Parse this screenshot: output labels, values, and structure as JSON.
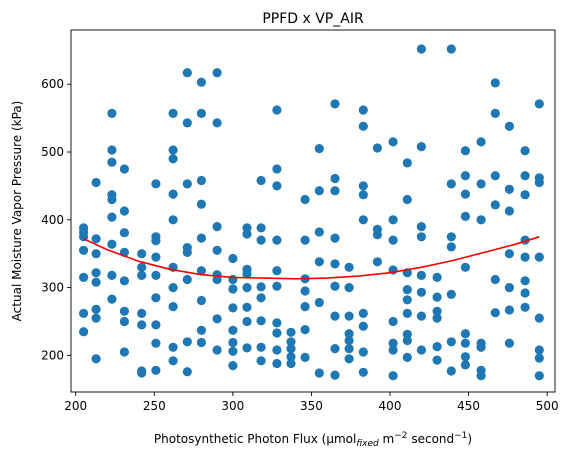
{
  "chart_data": {
    "type": "scatter",
    "title": "PPFD x VP_AIR",
    "xlabel_parts": {
      "main": "Photosynthetic Photon Flux (μmol",
      "sub": "fixed",
      "mid": " m",
      "sup1": "−2",
      "mid2": " second",
      "sup2": "−1",
      "end": ")"
    },
    "ylabel": "Actual Moisture Vapor Pressure (kPa)",
    "xlim": [
      197,
      505
    ],
    "ylim": [
      146,
      680
    ],
    "xticks": [
      200,
      250,
      300,
      350,
      400,
      450,
      500
    ],
    "yticks": [
      200,
      300,
      400,
      500,
      600
    ],
    "grid": false,
    "point_color": "#1f77b4",
    "fit_color": "#ff0000",
    "points": [
      [
        205,
        382
      ],
      [
        205,
        375
      ],
      [
        205,
        355
      ],
      [
        205,
        315
      ],
      [
        205,
        262
      ],
      [
        205,
        235
      ],
      [
        205,
        388
      ],
      [
        213,
        455
      ],
      [
        213,
        372
      ],
      [
        213,
        350
      ],
      [
        213,
        322
      ],
      [
        213,
        308
      ],
      [
        213,
        268
      ],
      [
        213,
        255
      ],
      [
        213,
        195
      ],
      [
        223,
        557
      ],
      [
        223,
        503
      ],
      [
        223,
        485
      ],
      [
        223,
        437
      ],
      [
        223,
        430
      ],
      [
        223,
        404
      ],
      [
        223,
        364
      ],
      [
        223,
        318
      ],
      [
        223,
        283
      ],
      [
        231,
        475
      ],
      [
        231,
        413
      ],
      [
        231,
        381
      ],
      [
        231,
        352
      ],
      [
        231,
        310
      ],
      [
        231,
        265
      ],
      [
        231,
        250
      ],
      [
        231,
        205
      ],
      [
        242,
        350
      ],
      [
        242,
        330
      ],
      [
        242,
        318
      ],
      [
        242,
        262
      ],
      [
        242,
        245
      ],
      [
        242,
        177
      ],
      [
        242,
        174
      ],
      [
        251,
        453
      ],
      [
        251,
        375
      ],
      [
        251,
        369
      ],
      [
        251,
        345
      ],
      [
        251,
        318
      ],
      [
        251,
        285
      ],
      [
        251,
        245
      ],
      [
        251,
        218
      ],
      [
        251,
        178
      ],
      [
        262,
        557
      ],
      [
        262,
        503
      ],
      [
        262,
        490
      ],
      [
        262,
        438
      ],
      [
        262,
        400
      ],
      [
        262,
        330
      ],
      [
        262,
        300
      ],
      [
        262,
        272
      ],
      [
        262,
        212
      ],
      [
        262,
        192
      ],
      [
        271,
        617
      ],
      [
        271,
        543
      ],
      [
        271,
        453
      ],
      [
        271,
        359
      ],
      [
        271,
        352
      ],
      [
        271,
        312
      ],
      [
        271,
        220
      ],
      [
        271,
        176
      ],
      [
        280,
        603
      ],
      [
        280,
        557
      ],
      [
        280,
        458
      ],
      [
        280,
        423
      ],
      [
        280,
        373
      ],
      [
        280,
        325
      ],
      [
        280,
        281
      ],
      [
        280,
        237
      ],
      [
        280,
        219
      ],
      [
        290,
        617
      ],
      [
        290,
        543
      ],
      [
        290,
        390
      ],
      [
        290,
        355
      ],
      [
        290,
        319
      ],
      [
        290,
        312
      ],
      [
        290,
        254
      ],
      [
        290,
        208
      ],
      [
        300,
        343
      ],
      [
        300,
        312
      ],
      [
        300,
        298
      ],
      [
        300,
        270
      ],
      [
        300,
        237
      ],
      [
        300,
        219
      ],
      [
        300,
        206
      ],
      [
        300,
        185
      ],
      [
        309,
        388
      ],
      [
        309,
        379
      ],
      [
        309,
        327
      ],
      [
        309,
        320
      ],
      [
        309,
        300
      ],
      [
        309,
        271
      ],
      [
        309,
        250
      ],
      [
        309,
        211
      ],
      [
        318,
        458
      ],
      [
        318,
        388
      ],
      [
        318,
        370
      ],
      [
        318,
        301
      ],
      [
        318,
        285
      ],
      [
        318,
        251
      ],
      [
        318,
        212
      ],
      [
        318,
        192
      ],
      [
        328,
        562
      ],
      [
        328,
        475
      ],
      [
        328,
        450
      ],
      [
        328,
        370
      ],
      [
        328,
        325
      ],
      [
        328,
        302
      ],
      [
        328,
        248
      ],
      [
        328,
        233
      ],
      [
        328,
        208
      ],
      [
        328,
        188
      ],
      [
        337,
        234
      ],
      [
        337,
        220
      ],
      [
        337,
        210
      ],
      [
        337,
        198
      ],
      [
        337,
        188
      ],
      [
        346,
        430
      ],
      [
        346,
        370
      ],
      [
        346,
        313
      ],
      [
        346,
        295
      ],
      [
        346,
        272
      ],
      [
        346,
        238
      ],
      [
        346,
        197
      ],
      [
        355,
        505
      ],
      [
        355,
        443
      ],
      [
        355,
        382
      ],
      [
        355,
        338
      ],
      [
        355,
        278
      ],
      [
        355,
        174
      ],
      [
        365,
        571
      ],
      [
        365,
        461
      ],
      [
        365,
        443
      ],
      [
        365,
        373
      ],
      [
        365,
        335
      ],
      [
        365,
        302
      ],
      [
        365,
        258
      ],
      [
        365,
        210
      ],
      [
        365,
        171
      ],
      [
        374,
        330
      ],
      [
        374,
        300
      ],
      [
        374,
        258
      ],
      [
        374,
        232
      ],
      [
        374,
        222
      ],
      [
        374,
        210
      ],
      [
        374,
        195
      ],
      [
        383,
        562
      ],
      [
        383,
        538
      ],
      [
        383,
        450
      ],
      [
        383,
        437
      ],
      [
        383,
        400
      ],
      [
        383,
        262
      ],
      [
        383,
        243
      ],
      [
        383,
        205
      ],
      [
        383,
        175
      ],
      [
        392,
        506
      ],
      [
        392,
        386
      ],
      [
        392,
        378
      ],
      [
        392,
        338
      ],
      [
        402,
        515
      ],
      [
        402,
        400
      ],
      [
        402,
        370
      ],
      [
        402,
        326
      ],
      [
        402,
        250
      ],
      [
        402,
        218
      ],
      [
        402,
        208
      ],
      [
        402,
        170
      ],
      [
        411,
        484
      ],
      [
        411,
        430
      ],
      [
        411,
        322
      ],
      [
        411,
        297
      ],
      [
        411,
        282
      ],
      [
        411,
        262
      ],
      [
        411,
        231
      ],
      [
        411,
        222
      ],
      [
        411,
        197
      ],
      [
        420,
        652
      ],
      [
        420,
        508
      ],
      [
        420,
        390
      ],
      [
        420,
        375
      ],
      [
        420,
        318
      ],
      [
        420,
        293
      ],
      [
        420,
        258
      ],
      [
        420,
        208
      ],
      [
        430,
        315
      ],
      [
        430,
        286
      ],
      [
        430,
        265
      ],
      [
        430,
        255
      ],
      [
        430,
        213
      ],
      [
        430,
        193
      ],
      [
        439,
        652
      ],
      [
        439,
        453
      ],
      [
        439,
        375
      ],
      [
        439,
        360
      ],
      [
        439,
        290
      ],
      [
        439,
        220
      ],
      [
        439,
        177
      ],
      [
        448,
        502
      ],
      [
        448,
        465
      ],
      [
        448,
        438
      ],
      [
        448,
        405
      ],
      [
        448,
        330
      ],
      [
        448,
        232
      ],
      [
        448,
        218
      ],
      [
        448,
        198
      ],
      [
        448,
        186
      ],
      [
        458,
        515
      ],
      [
        458,
        453
      ],
      [
        458,
        400
      ],
      [
        458,
        218
      ],
      [
        458,
        212
      ],
      [
        458,
        178
      ],
      [
        458,
        170
      ],
      [
        467,
        602
      ],
      [
        467,
        557
      ],
      [
        467,
        465
      ],
      [
        467,
        422
      ],
      [
        467,
        312
      ],
      [
        467,
        263
      ],
      [
        476,
        538
      ],
      [
        476,
        445
      ],
      [
        476,
        413
      ],
      [
        476,
        350
      ],
      [
        476,
        300
      ],
      [
        476,
        267
      ],
      [
        476,
        218
      ],
      [
        486,
        502
      ],
      [
        486,
        465
      ],
      [
        486,
        437
      ],
      [
        486,
        370
      ],
      [
        486,
        345
      ],
      [
        486,
        310
      ],
      [
        486,
        292
      ],
      [
        486,
        271
      ],
      [
        495,
        571
      ],
      [
        495,
        462
      ],
      [
        495,
        455
      ],
      [
        495,
        345
      ],
      [
        495,
        255
      ],
      [
        495,
        208
      ],
      [
        495,
        196
      ],
      [
        495,
        170
      ]
    ],
    "fit_curve": [
      [
        205,
        372
      ],
      [
        220,
        356
      ],
      [
        240,
        339
      ],
      [
        260,
        327
      ],
      [
        280,
        319
      ],
      [
        300,
        315
      ],
      [
        320,
        314
      ],
      [
        340,
        313
      ],
      [
        360,
        314
      ],
      [
        380,
        317
      ],
      [
        400,
        322
      ],
      [
        420,
        330
      ],
      [
        440,
        340
      ],
      [
        460,
        352
      ],
      [
        480,
        364
      ],
      [
        495,
        375
      ]
    ]
  }
}
